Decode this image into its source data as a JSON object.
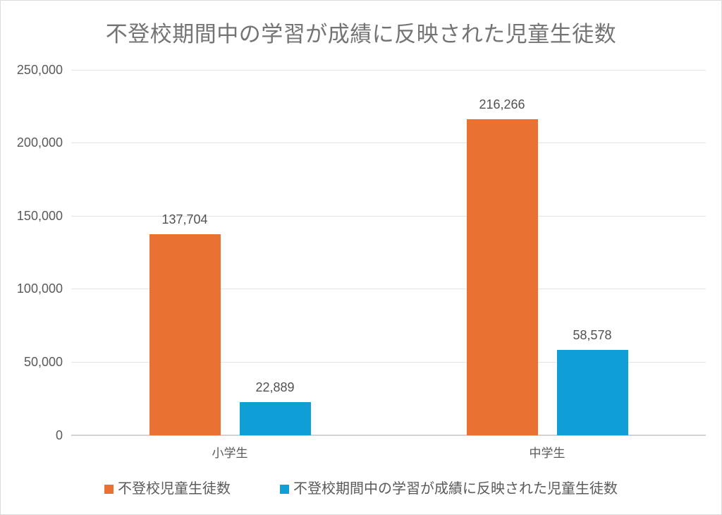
{
  "colors": {
    "series_orange": "#E97132",
    "series_blue": "#0F9ED5",
    "gridline": "#E4E4E4",
    "axis_line": "#D2D2D2",
    "title_text": "#747474",
    "label_text": "#5A5A5A",
    "background": "#FFFFFF"
  },
  "chart_data": {
    "type": "bar",
    "title": "不登校期間中の学習が成績に反映された児童生徒数",
    "categories": [
      "小学生",
      "中学生"
    ],
    "series": [
      {
        "name": "不登校児童生徒数",
        "color": "#E97132",
        "values": [
          137704,
          216266
        ],
        "value_labels": [
          "137,704",
          "216,266"
        ]
      },
      {
        "name": "不登校期間中の学習が成績に反映された児童生徒数",
        "color": "#0F9ED5",
        "values": [
          22889,
          58578
        ],
        "value_labels": [
          "22,889",
          "58,578"
        ]
      }
    ],
    "ylim": [
      0,
      250000
    ],
    "yticks": [
      0,
      50000,
      100000,
      150000,
      200000,
      250000
    ],
    "ytick_labels": [
      "0",
      "50,000",
      "100,000",
      "150,000",
      "200,000",
      "250,000"
    ],
    "grid": true,
    "legend_position": "bottom",
    "xlabel": "",
    "ylabel": ""
  }
}
